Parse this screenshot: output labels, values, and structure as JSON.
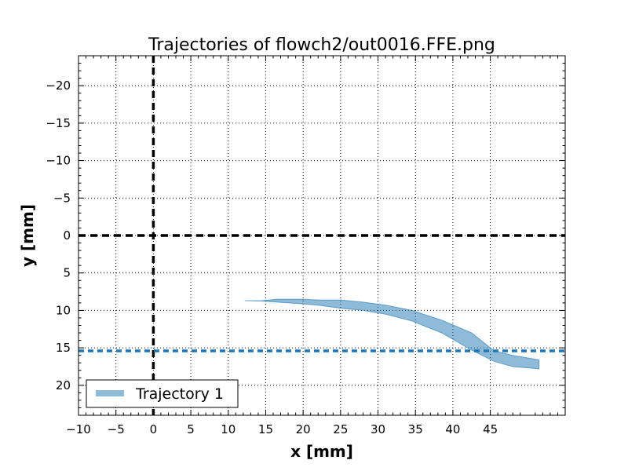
{
  "chart_data": {
    "type": "area",
    "title": "Trajectories of flowch2/out0016.FFE.png",
    "xlabel": "x [mm]",
    "ylabel": "y [mm]",
    "xlim": [
      -10,
      55
    ],
    "ylim": [
      24,
      -24
    ],
    "y_inverted": true,
    "grid": true,
    "x_ticks": [
      -10,
      -5,
      0,
      5,
      10,
      15,
      20,
      25,
      30,
      35,
      40,
      45
    ],
    "x_tick_labels": [
      "−10",
      "−5",
      "0",
      "5",
      "10",
      "15",
      "20",
      "25",
      "30",
      "35",
      "40",
      "45"
    ],
    "y_ticks": [
      -20,
      -15,
      -10,
      -5,
      0,
      5,
      10,
      15,
      20
    ],
    "y_tick_labels": [
      "−20",
      "−15",
      "−10",
      "−5",
      "0",
      "5",
      "10",
      "15",
      "20"
    ],
    "reference_lines": [
      {
        "orientation": "vertical",
        "value": 0,
        "color": "#000000",
        "style": "dashed"
      },
      {
        "orientation": "horizontal",
        "value": 0,
        "color": "#000000",
        "style": "dashed"
      },
      {
        "orientation": "horizontal",
        "value": 15.4,
        "color": "#1f77b4",
        "style": "dashed"
      }
    ],
    "series": [
      {
        "name": "Trajectory 1",
        "color": "#1f77b4",
        "upper": {
          "x": [
            12.2,
            14.5,
            16.5,
            19.5,
            22,
            25,
            28,
            31,
            34.5,
            38.5,
            42.5,
            45.5,
            48,
            51.5
          ],
          "y": [
            8.7,
            8.7,
            8.5,
            8.5,
            8.6,
            8.6,
            8.9,
            9.3,
            10.0,
            11.3,
            13.0,
            15.4,
            16.0,
            16.6
          ]
        },
        "lower": {
          "x": [
            12.2,
            14.5,
            16.5,
            19.5,
            22,
            25,
            28,
            31,
            34.5,
            38.5,
            42.5,
            45.5,
            48,
            51.5
          ],
          "y": [
            8.7,
            8.75,
            8.9,
            9.1,
            9.3,
            9.7,
            10.0,
            10.5,
            11.4,
            13.0,
            15.3,
            16.8,
            17.5,
            17.8
          ]
        }
      }
    ],
    "legend": {
      "position": "lower-left",
      "entries": [
        "Trajectory 1"
      ]
    }
  }
}
